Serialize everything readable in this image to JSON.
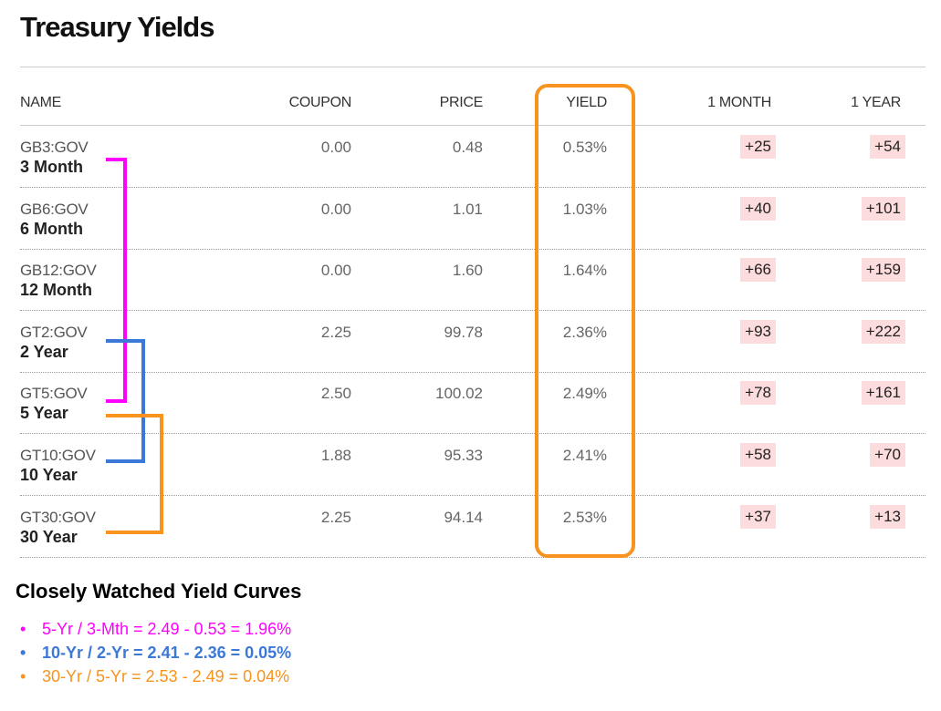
{
  "title": "Treasury Yields",
  "columns": {
    "name": "NAME",
    "coupon": "COUPON",
    "price": "PRICE",
    "yield": "YIELD",
    "month": "1 MONTH",
    "year": "1 YEAR"
  },
  "rows": [
    {
      "ticker": "GB3:GOV",
      "term": "3 Month",
      "coupon": "0.00",
      "price": "0.48",
      "yield": "0.53%",
      "month": "+25",
      "year": "+54"
    },
    {
      "ticker": "GB6:GOV",
      "term": "6 Month",
      "coupon": "0.00",
      "price": "1.01",
      "yield": "1.03%",
      "month": "+40",
      "year": "+101"
    },
    {
      "ticker": "GB12:GOV",
      "term": "12 Month",
      "coupon": "0.00",
      "price": "1.60",
      "yield": "1.64%",
      "month": "+66",
      "year": "+159"
    },
    {
      "ticker": "GT2:GOV",
      "term": "2 Year",
      "coupon": "2.25",
      "price": "99.78",
      "yield": "2.36%",
      "month": "+93",
      "year": "+222"
    },
    {
      "ticker": "GT5:GOV",
      "term": "5 Year",
      "coupon": "2.50",
      "price": "100.02",
      "yield": "2.49%",
      "month": "+78",
      "year": "+161"
    },
    {
      "ticker": "GT10:GOV",
      "term": "10 Year",
      "coupon": "1.88",
      "price": "95.33",
      "yield": "2.41%",
      "month": "+58",
      "year": "+70"
    },
    {
      "ticker": "GT30:GOV",
      "term": "30 Year",
      "coupon": "2.25",
      "price": "94.14",
      "yield": "2.53%",
      "month": "+37",
      "year": "+13"
    }
  ],
  "curves": {
    "heading": "Closely Watched Yield Curves",
    "items": [
      {
        "bullet": "•",
        "text": "5-Yr / 3-Mth = 2.49 - 0.53 = 1.96%",
        "color": "#ff00ff",
        "bold": false
      },
      {
        "bullet": "•",
        "text": "10-Yr / 2-Yr = 2.41 - 2.36 = 0.05%",
        "color": "#3c78d8",
        "bold": true
      },
      {
        "bullet": "•",
        "text": "30-Yr / 5-Yr = 2.53 - 2.49 = 0.04%",
        "color": "#f7931e",
        "bold": false
      }
    ]
  },
  "colors": {
    "magenta": "#ff00ff",
    "blue": "#3c78d8",
    "orange": "#f7931e",
    "change_bg": "#fcdcdc"
  }
}
